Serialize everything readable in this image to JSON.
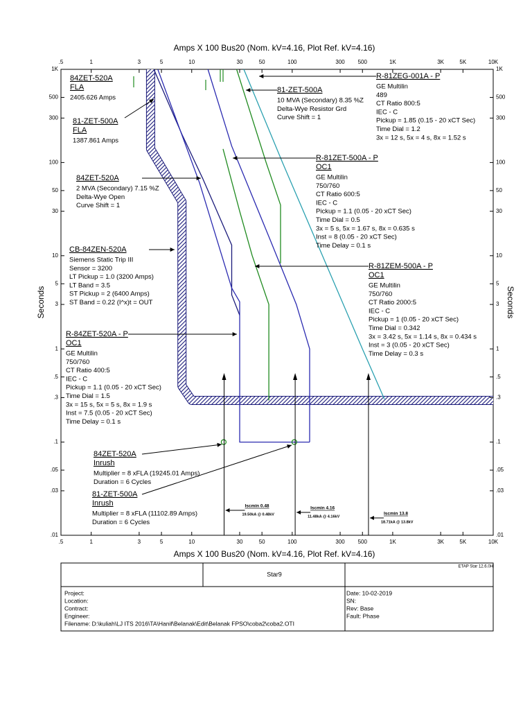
{
  "chart_data": {
    "type": "tcc",
    "axis_label_x": "Amps X 100 Bus20 (Nom. kV=4.16, Plot Ref. kV=4.16)",
    "axis_label_y": "Seconds",
    "log_scale": true,
    "xlim": [
      0.5,
      10000
    ],
    "ylim": [
      0.01,
      1000
    ],
    "xticks": [
      {
        "value": 0.5,
        "label": ".5"
      },
      1,
      3,
      5,
      10,
      30,
      50,
      100,
      300,
      500,
      {
        "value": 1000,
        "label": "1K"
      },
      {
        "value": 3000,
        "label": "3K"
      },
      {
        "value": 5000,
        "label": "5K"
      },
      {
        "value": 10000,
        "label": "10K"
      }
    ],
    "yticks": [
      {
        "value": 0.01,
        "label": ".01"
      },
      {
        "value": 0.03,
        "label": ".03"
      },
      {
        "value": 0.05,
        "label": ".05"
      },
      {
        "value": 0.1,
        "label": ".1"
      },
      {
        "value": 0.3,
        "label": ".3"
      },
      {
        "value": 0.5,
        "label": ".5"
      },
      1,
      3,
      5,
      10,
      30,
      50,
      100,
      300,
      500,
      {
        "value": 1000,
        "label": "1K"
      }
    ],
    "series": [
      {
        "color": "#1a1a7a",
        "style": "hatched",
        "x": [
          3.9,
          3.9,
          8,
          8,
          10,
          10000
        ],
        "y": [
          1000,
          140,
          38,
          0.4,
          0.28,
          0.28
        ]
      },
      {
        "color": "#1a1a7a",
        "style": "line",
        "x": [
          4.2,
          8,
          12.9,
          25,
          25,
          30
        ],
        "y": [
          1000,
          200,
          67,
          13,
          3.8,
          2.3
        ]
      },
      {
        "color": "#2a2ab0",
        "style": "line",
        "x": [
          4.6,
          12,
          25,
          30,
          30,
          149
        ],
        "y": [
          1000,
          60,
          4.5,
          3.2,
          0.1,
          0.1
        ]
      },
      {
        "color": "#2a2ab0",
        "style": "line",
        "x": [
          14.5,
          25,
          60,
          110,
          149,
          149
        ],
        "y": [
          1000,
          150,
          15,
          3,
          1,
          0.1
        ]
      },
      {
        "color": "#1f8a1f",
        "style": "line",
        "x": [
          20.5,
          30,
          40,
          58.5,
          58.5
        ],
        "y": [
          140,
          30,
          10,
          3,
          0.28
        ]
      },
      {
        "color": "#1f8a1f",
        "style": "line",
        "x": [
          28,
          55,
          76.5,
          76.5
        ],
        "y": [
          1000,
          100,
          35,
          8.3
        ]
      },
      {
        "color": "#2aa0b0",
        "style": "line",
        "x": [
          33,
          80,
          200,
          500,
          826
        ],
        "y": [
          1000,
          100,
          10,
          1,
          0.29
        ]
      }
    ],
    "points": [
      {
        "x": 20.8,
        "y": 0.1,
        "color": "#1f8a1f"
      },
      {
        "x": 105,
        "y": 0.1,
        "color": "#1f8a1f"
      }
    ],
    "fault_arrows": [
      {
        "x": 21,
        "label": "Iscmin 0.48",
        "sublabel": "19.50kA @ 0.48kV"
      },
      {
        "x": 107,
        "label": "Iscmin 4.16",
        "sublabel": "11.48kA @ 4.16kV"
      },
      {
        "x": 574,
        "label": "Iscmin 13.8",
        "sublabel": "18.71kA @ 13.8kV"
      }
    ],
    "annotations": [
      [
        "84ZET-520A",
        "FLA",
        "2405.626 Amps"
      ],
      [
        "81-ZET-500A",
        "FLA",
        "1387.861 Amps"
      ],
      [
        "84ZET-520A",
        "2 MVA (Secondary)  7.15 %Z",
        "Delta-Wye Open",
        "Curve Shift = 1"
      ],
      [
        "CB-84ZEN-520A",
        "Siemens  Static Trip III",
        "Sensor = 3200",
        "LT Pickup = 1.0 (3200 Amps)",
        "LT Band = 3.5",
        "ST Pickup = 2 (6400 Amps)",
        "ST Band = 0.22  (I^x)t = OUT"
      ],
      [
        "R-84ZET-520A - P",
        "OC1",
        "GE Multilin",
        "750/760",
        "CT Ratio 400:5",
        "IEC - C",
        "Pickup = 1.1 (0.05 - 20  xCT Sec)",
        "Time Dial = 1.5",
        "3x = 15 s, 5x = 5 s, 8x = 1.9 s",
        "Inst = 7.5 (0.05 - 20  xCT Sec)",
        "Time Delay = 0.1 s"
      ],
      [
        "84ZET-520A",
        "Inrush",
        "Multiplier = 8 xFLA (19245.01 Amps)",
        "Duration = 6 Cycles"
      ],
      [
        "81-ZET-500A",
        "Inrush",
        "Multiplier = 8 xFLA (11102.89 Amps)",
        "Duration = 6 Cycles"
      ],
      [
        "R-81ZEG-001A - P",
        "GE Multilin",
        "489",
        "CT Ratio 800:5",
        "IEC - C",
        "Pickup = 1.85 (0.15 - 20  xCT Sec)",
        "Time Dial = 1.2",
        "3x = 12 s, 5x = 4 s, 8x = 1.52 s"
      ],
      [
        "81-ZET-500A",
        "10 MVA (Secondary)  8.35 %Z",
        "Delta-Wye Resistor Grd",
        "Curve Shift = 1"
      ],
      [
        "R-81ZET-500A - P",
        "OC1",
        "GE Multilin",
        "750/760",
        "CT Ratio 600:5",
        "IEC - C",
        "Pickup = 1.1 (0.05 - 20  xCT Sec)",
        "Time Dial = 0.5",
        "3x = 5 s, 5x = 1.67 s, 8x = 0.635 s",
        "Inst = 8 (0.05 - 20  xCT Sec)",
        "Time Delay = 0.1 s"
      ],
      [
        "R-81ZEM-500A - P",
        "OC1",
        "GE Multilin",
        "750/760",
        "CT Ratio 2000:5",
        "IEC - C",
        "Pickup = 1 (0.05 - 20  xCT Sec)",
        "Time Dial = 0.342",
        "3x = 3.42 s, 5x = 1.14 s, 8x = 0.434 s",
        "Inst = 3 (0.05 - 20  xCT Sec)",
        "Time Delay = 0.3 s"
      ]
    ]
  },
  "title_block": {
    "version": "ETAP Star 12.6.0H",
    "name": "Star9",
    "left": [
      "Project:",
      "Location:",
      "Contract:",
      "Engineer:",
      "Filename:  D:\\kuliah\\LJ ITS 2016\\TA\\Hanif\\Belanak\\Edit\\Belanak FPSO\\coba2\\coba2.OTI"
    ],
    "right": [
      "Date:   10-02-2019",
      "SN:",
      "Rev:    Base",
      "Fault:   Phase"
    ]
  }
}
